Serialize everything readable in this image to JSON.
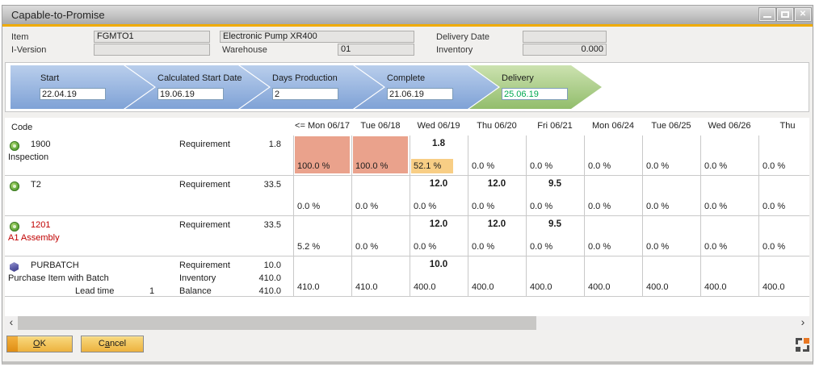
{
  "colors": {
    "accent_gold": "#F0AB00",
    "salmon": "#EAA28C",
    "yellow": "#F8CE85",
    "red_text": "#C00000",
    "green_text": "#00A94F",
    "grid_line": "#C9C9C9"
  },
  "window": {
    "title": "Capable-to-Promise",
    "close_glyph": "✕"
  },
  "header": {
    "item_label": "Item",
    "item_value": "FGMTO1",
    "item_desc": "Electronic Pump XR400",
    "delivery_date_label": "Delivery Date",
    "delivery_date_value": "",
    "iversion_label": "I-Version",
    "iversion_value": "",
    "warehouse_label": "Warehouse",
    "warehouse_value": "01",
    "inventory_label": "Inventory",
    "inventory_value": "0.000"
  },
  "flow": {
    "steps": [
      {
        "label": "Start",
        "value": "22.04.19",
        "color": "blue"
      },
      {
        "label": "Calculated Start Date",
        "value": "19.06.19",
        "color": "blue"
      },
      {
        "label": "Days Production",
        "value": "2",
        "color": "blue"
      },
      {
        "label": "Complete",
        "value": "21.06.19",
        "color": "blue"
      },
      {
        "label": "Delivery",
        "value": "25.06.19",
        "color": "green"
      }
    ]
  },
  "table": {
    "code_header": "Code",
    "date_columns": [
      "<= Mon 06/17",
      "Tue 06/18",
      "Wed 06/19",
      "Thu 06/20",
      "Fri 06/21",
      "Mon 06/24",
      "Tue 06/25",
      "Wed 06/26",
      "Thu"
    ],
    "rows": [
      {
        "icon": "gear",
        "code": "1900",
        "name": "Inspection",
        "code_color": "#1c1c1c",
        "meta": [
          {
            "label": "Requirement",
            "value": "1.8"
          }
        ],
        "cells": [
          {
            "bottom": "100.0 %",
            "cell_bg": "salmon"
          },
          {
            "bottom": "100.0 %",
            "cell_bg": "salmon"
          },
          {
            "top": "1.8",
            "bottom": "52.1 %",
            "bottom_bg": "yellow"
          },
          {
            "bottom": "0.0 %"
          },
          {
            "bottom": "0.0 %"
          },
          {
            "bottom": "0.0 %"
          },
          {
            "bottom": "0.0 %"
          },
          {
            "bottom": "0.0 %"
          },
          {
            "bottom": "0.0 %"
          }
        ]
      },
      {
        "icon": "gear",
        "code": "T2",
        "name": "",
        "code_color": "#1c1c1c",
        "meta": [
          {
            "label": "Requirement",
            "value": "33.5"
          }
        ],
        "cells": [
          {
            "bottom": "0.0 %"
          },
          {
            "bottom": "0.0 %"
          },
          {
            "top": "12.0",
            "bottom": "0.0 %"
          },
          {
            "top": "12.0",
            "bottom": "0.0 %"
          },
          {
            "top": "9.5",
            "bottom": "0.0 %"
          },
          {
            "bottom": "0.0 %"
          },
          {
            "bottom": "0.0 %"
          },
          {
            "bottom": "0.0 %"
          },
          {
            "bottom": "0.0 %"
          }
        ]
      },
      {
        "icon": "gear",
        "code": "1201",
        "name": "A1 Assembly",
        "code_color": "#C00000",
        "meta": [
          {
            "label": "Requirement",
            "value": "33.5"
          }
        ],
        "cells": [
          {
            "bottom": "5.2 %"
          },
          {
            "bottom": "0.0 %"
          },
          {
            "top": "12.0",
            "bottom": "0.0 %"
          },
          {
            "top": "12.0",
            "bottom": "0.0 %"
          },
          {
            "top": "9.5",
            "bottom": "0.0 %"
          },
          {
            "bottom": "0.0 %"
          },
          {
            "bottom": "0.0 %"
          },
          {
            "bottom": "0.0 %"
          },
          {
            "bottom": "0.0 %"
          }
        ]
      },
      {
        "icon": "cube",
        "code": "PURBATCH",
        "name": "Purchase Item with Batch",
        "code_color": "#1c1c1c",
        "lead": {
          "label": "Lead time",
          "value": "1"
        },
        "meta": [
          {
            "label": "Requirement",
            "value": "10.0"
          },
          {
            "label": "Inventory",
            "value": "410.0"
          },
          {
            "label": "Balance",
            "value": "410.0"
          }
        ],
        "cells": [
          {
            "bottom": "410.0"
          },
          {
            "bottom": "410.0"
          },
          {
            "top": "10.0",
            "bottom": "400.0"
          },
          {
            "bottom": "400.0"
          },
          {
            "bottom": "400.0"
          },
          {
            "bottom": "400.0"
          },
          {
            "bottom": "400.0"
          },
          {
            "bottom": "400.0"
          },
          {
            "bottom": "400.0"
          }
        ]
      }
    ]
  },
  "scrollbar": {
    "left_glyph": "‹",
    "right_glyph": "›"
  },
  "footer": {
    "ok_accel": "O",
    "ok_rest": "K",
    "cancel_pre": "C",
    "cancel_accel": "a",
    "cancel_rest": "ncel"
  }
}
